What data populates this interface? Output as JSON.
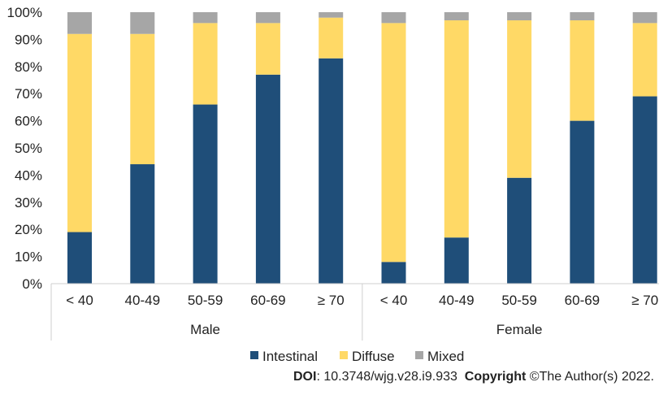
{
  "chart_data": {
    "type": "bar",
    "stacked": true,
    "percent": true,
    "title": "",
    "xlabel": "",
    "ylabel": "",
    "ylim": [
      0,
      100
    ],
    "y_ticks": [
      "0%",
      "10%",
      "20%",
      "30%",
      "40%",
      "50%",
      "60%",
      "70%",
      "80%",
      "90%",
      "100%"
    ],
    "categories": [
      "< 40",
      "40-49",
      "50-59",
      "60-69",
      "≥ 70",
      "< 40",
      "40-49",
      "50-59",
      "60-69",
      "≥ 70"
    ],
    "groups": [
      {
        "label": "Male",
        "indices": [
          0,
          1,
          2,
          3,
          4
        ]
      },
      {
        "label": "Female",
        "indices": [
          5,
          6,
          7,
          8,
          9
        ]
      }
    ],
    "series": [
      {
        "name": "Intestinal",
        "color": "#1f4e79",
        "values": [
          19,
          44,
          66,
          77,
          83,
          8,
          17,
          39,
          60,
          69
        ]
      },
      {
        "name": "Diffuse",
        "color": "#ffd966",
        "values": [
          73,
          48,
          30,
          19,
          15,
          88,
          80,
          58,
          37,
          27
        ]
      },
      {
        "name": "Mixed",
        "color": "#a6a6a6",
        "values": [
          8,
          8,
          4,
          4,
          2,
          4,
          3,
          3,
          3,
          4
        ]
      }
    ],
    "grid": false,
    "legend_position": "bottom"
  },
  "footer": {
    "doi_label": "DOI",
    "doi_value": ": 10.3748/wjg.v28.i9.933",
    "copyright_label": "Copyright",
    "copyright_value": " ©The Author(s) 2022."
  }
}
